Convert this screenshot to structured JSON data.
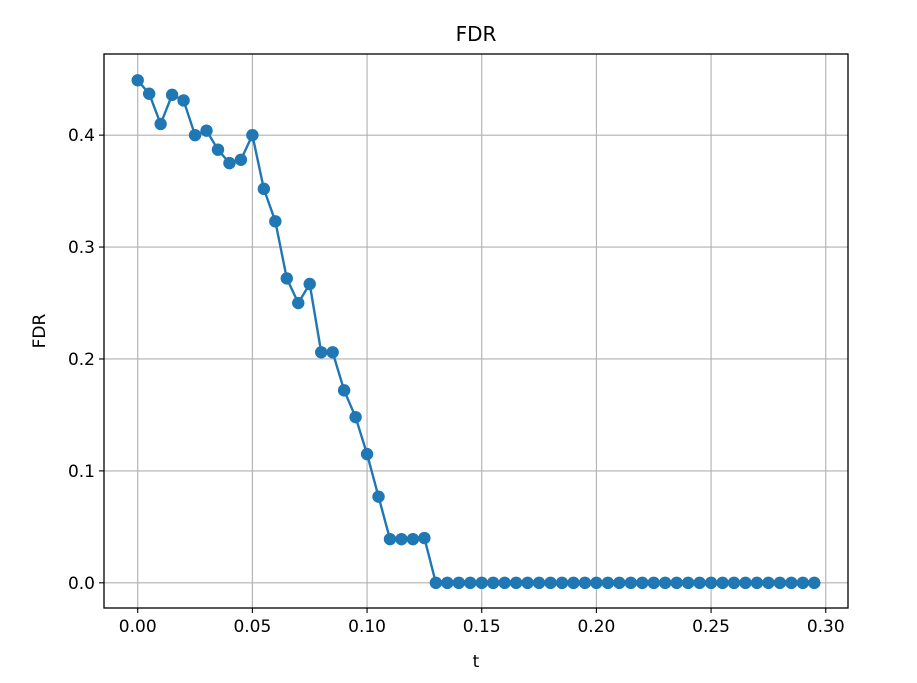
{
  "chart_data": {
    "type": "line",
    "title": "FDR",
    "xlabel": "t",
    "ylabel": "FDR",
    "xlim": [
      -0.0147,
      0.3097
    ],
    "ylim": [
      -0.0225,
      0.4725
    ],
    "xticks": [
      0.0,
      0.05,
      0.1,
      0.15,
      0.2,
      0.25,
      0.3
    ],
    "xtick_labels": [
      "0.00",
      "0.05",
      "0.10",
      "0.15",
      "0.20",
      "0.25",
      "0.30"
    ],
    "yticks": [
      0.0,
      0.1,
      0.2,
      0.3,
      0.4
    ],
    "ytick_labels": [
      "0.0",
      "0.1",
      "0.2",
      "0.3",
      "0.4"
    ],
    "grid": true,
    "marker": "circle",
    "color": "#1f77b4",
    "series": [
      {
        "x": [
          0.0,
          0.005,
          0.01,
          0.015,
          0.02,
          0.025,
          0.03,
          0.035,
          0.04,
          0.045,
          0.05,
          0.055,
          0.06,
          0.065,
          0.07,
          0.075,
          0.08,
          0.085,
          0.09,
          0.095,
          0.1,
          0.105,
          0.11,
          0.115,
          0.12,
          0.125,
          0.13,
          0.135,
          0.14,
          0.145,
          0.15,
          0.155,
          0.16,
          0.165,
          0.17,
          0.175,
          0.18,
          0.185,
          0.19,
          0.195,
          0.2,
          0.205,
          0.21,
          0.215,
          0.22,
          0.225,
          0.23,
          0.235,
          0.24,
          0.245,
          0.25,
          0.255,
          0.26,
          0.265,
          0.27,
          0.275,
          0.28,
          0.285,
          0.29,
          0.295
        ],
        "y": [
          0.449,
          0.437,
          0.41,
          0.436,
          0.431,
          0.4,
          0.404,
          0.387,
          0.375,
          0.378,
          0.4,
          0.352,
          0.323,
          0.272,
          0.25,
          0.267,
          0.206,
          0.206,
          0.172,
          0.148,
          0.115,
          0.077,
          0.039,
          0.039,
          0.039,
          0.04,
          0.0,
          0.0,
          0.0,
          0.0,
          0.0,
          0.0,
          0.0,
          0.0,
          0.0,
          0.0,
          0.0,
          0.0,
          0.0,
          0.0,
          0.0,
          0.0,
          0.0,
          0.0,
          0.0,
          0.0,
          0.0,
          0.0,
          0.0,
          0.0,
          0.0,
          0.0,
          0.0,
          0.0,
          0.0,
          0.0,
          0.0,
          0.0,
          0.0,
          0.0
        ]
      }
    ]
  }
}
